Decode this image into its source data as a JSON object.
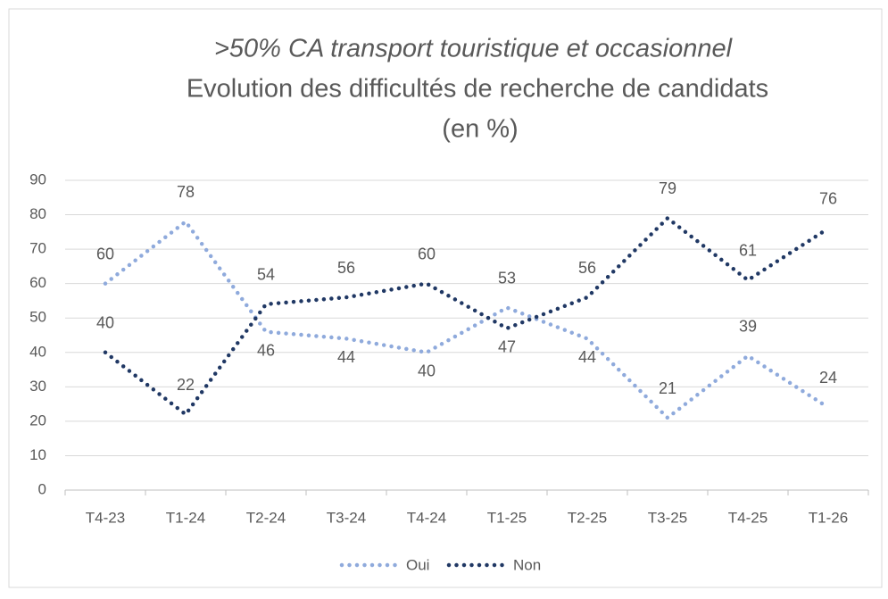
{
  "chart_data": {
    "type": "line",
    "title": ">50% CA transport touristique et occasionnel",
    "subtitle": [
      "Evolution des difficultés de recherche de candidats",
      "(en %)"
    ],
    "categories": [
      "T4-23",
      "T1-24",
      "T2-24",
      "T3-24",
      "T4-24",
      "T1-25",
      "T2-25",
      "T3-25",
      "T4-25",
      "T1-26"
    ],
    "series": [
      {
        "name": "Oui",
        "color": "#8faadc",
        "values": [
          60,
          78,
          46,
          44,
          40,
          53,
          44,
          21,
          39,
          24
        ]
      },
      {
        "name": "Non",
        "color": "#203864",
        "values": [
          40,
          22,
          54,
          56,
          60,
          47,
          56,
          79,
          61,
          76
        ]
      }
    ],
    "ylim": [
      0,
      90
    ],
    "yticks": [
      0,
      10,
      20,
      30,
      40,
      50,
      60,
      70,
      80,
      90
    ],
    "grid": true,
    "legend": "bottom"
  }
}
